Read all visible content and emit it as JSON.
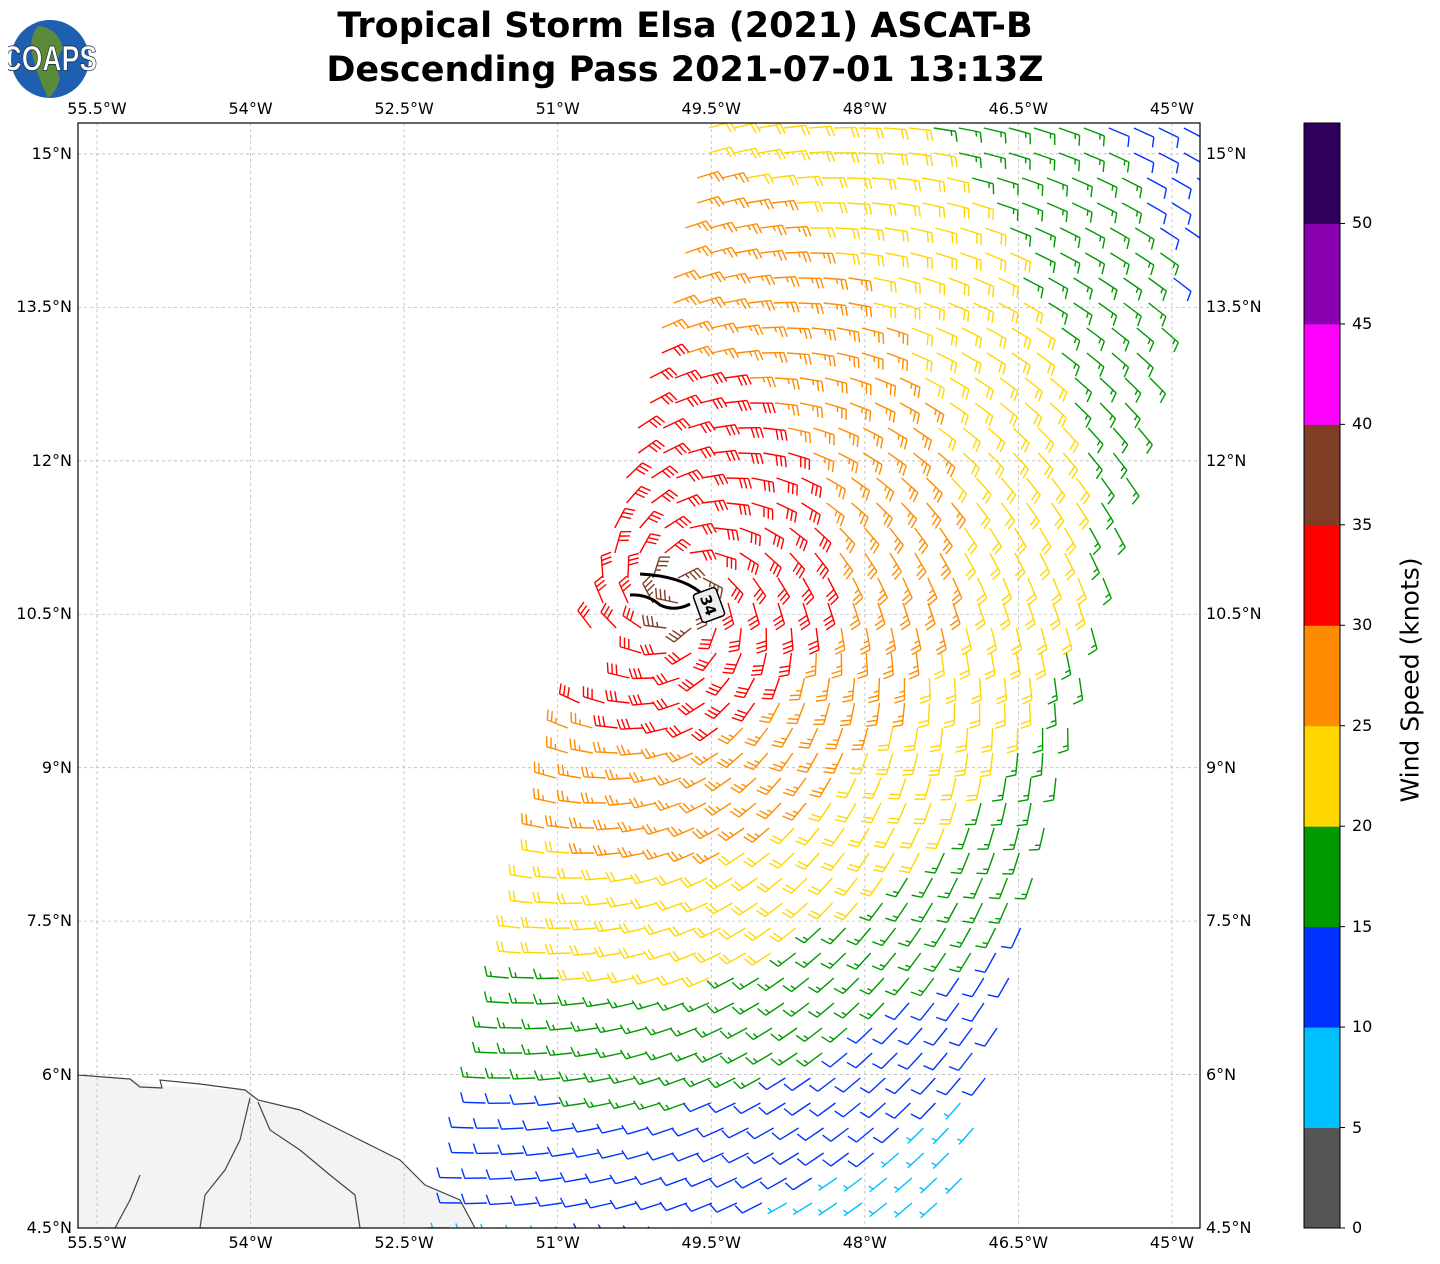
{
  "logo": {
    "text": "COAPS"
  },
  "title": {
    "line1": "Tropical Storm Elsa (2021) ASCAT-B",
    "line2": "Descending Pass 2021-07-01 13:13Z"
  },
  "map": {
    "lon_ticks": [
      {
        "value": -55.5,
        "label": "55.5°W"
      },
      {
        "value": -54,
        "label": "54°W"
      },
      {
        "value": -52.5,
        "label": "52.5°W"
      },
      {
        "value": -51,
        "label": "51°W"
      },
      {
        "value": -49.5,
        "label": "49.5°W"
      },
      {
        "value": -48,
        "label": "48°W"
      },
      {
        "value": -46.5,
        "label": "46.5°W"
      },
      {
        "value": -45,
        "label": "45°W"
      }
    ],
    "lat_ticks": [
      {
        "value": 15,
        "label": "15°N"
      },
      {
        "value": 13.5,
        "label": "13.5°N"
      },
      {
        "value": 12,
        "label": "12°N"
      },
      {
        "value": 10.5,
        "label": "10.5°N"
      },
      {
        "value": 9,
        "label": "9°N"
      },
      {
        "value": 7.5,
        "label": "7.5°N"
      },
      {
        "value": 6,
        "label": "6°N"
      },
      {
        "value": 4.5,
        "label": "4.5°N"
      }
    ],
    "storm_center": {
      "lat": 10.65,
      "lon": -49.8
    },
    "contour_label": "34"
  },
  "colorbar": {
    "label": "Wind Speed (knots)",
    "ticks": [
      "0",
      "5",
      "10",
      "15",
      "20",
      "25",
      "30",
      "35",
      "40",
      "45",
      "50"
    ],
    "colors": [
      "#555555",
      "#00bfff",
      "#0033ff",
      "#009900",
      "#ffd700",
      "#ff8c00",
      "#ff0000",
      "#803d25",
      "#ff00ff",
      "#8800b0",
      "#2e005c"
    ]
  }
}
